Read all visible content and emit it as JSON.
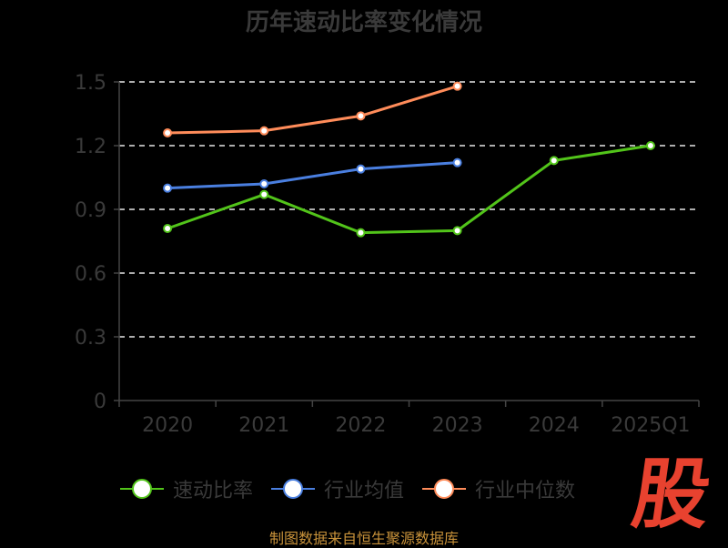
{
  "title": "历年速动比率变化情况",
  "footer": "制图数据来自恒生聚源数据库",
  "watermark": "股",
  "chart_data": {
    "type": "line",
    "title": "历年速动比率变化情况",
    "categories": [
      "2020",
      "2021",
      "2022",
      "2023",
      "2024",
      "2025Q1"
    ],
    "ylim": [
      0,
      1.5
    ],
    "yticks": [
      "0",
      "0.3",
      "0.6",
      "0.9",
      "1.2",
      "1.5"
    ],
    "grid": true,
    "legend_position": "bottom",
    "series": [
      {
        "name": "速动比率",
        "color": "#52c41a",
        "values": [
          0.81,
          0.97,
          0.79,
          0.8,
          1.13,
          1.2
        ]
      },
      {
        "name": "行业均值",
        "color": "#4a7fe0",
        "values": [
          1.0,
          1.02,
          1.09,
          1.12,
          null,
          null
        ]
      },
      {
        "name": "行业中位数",
        "color": "#ff8c5a",
        "values": [
          1.26,
          1.27,
          1.34,
          1.48,
          null,
          null
        ]
      }
    ]
  }
}
